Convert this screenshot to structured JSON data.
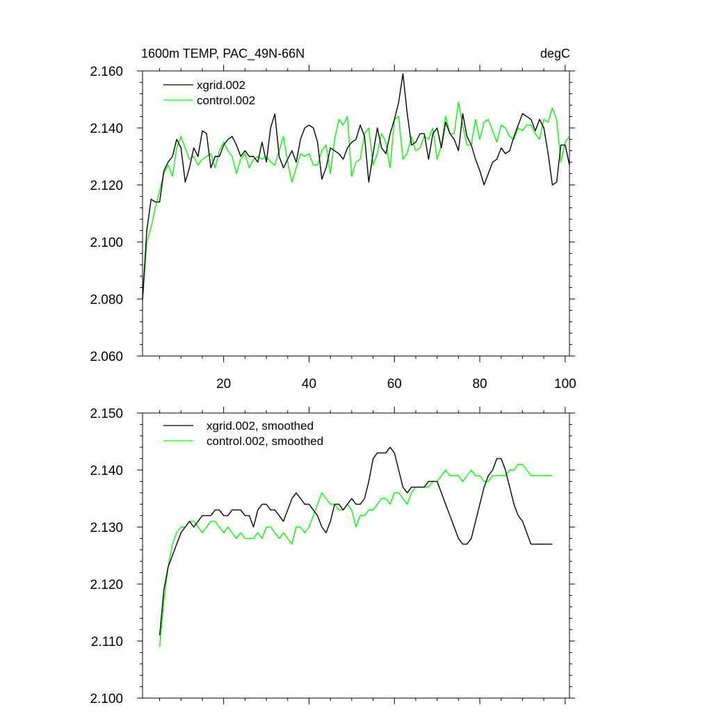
{
  "chart_data": [
    {
      "type": "line",
      "title": "1600m TEMP, PAC_49N-66N",
      "units": "degC",
      "xlabel": "",
      "ylabel": "",
      "xlim": [
        1,
        101
      ],
      "ylim": [
        2.06,
        2.16
      ],
      "xticks": [
        20,
        40,
        60,
        80,
        100
      ],
      "xtick_labels": [
        "20",
        "40",
        "60",
        "80",
        "100"
      ],
      "yticks": [
        2.06,
        2.08,
        2.1,
        2.12,
        2.14,
        2.16
      ],
      "ytick_labels": [
        "2.060",
        "2.080",
        "2.100",
        "2.120",
        "2.140",
        "2.160"
      ],
      "legend_position": "top-left",
      "grid": false,
      "series": [
        {
          "name": "xgrid.002",
          "color": "#000000",
          "x": [
            1,
            2,
            3,
            4,
            5,
            6,
            7,
            8,
            9,
            10,
            11,
            12,
            13,
            14,
            15,
            16,
            17,
            18,
            19,
            20,
            21,
            22,
            23,
            24,
            25,
            26,
            27,
            28,
            29,
            30,
            31,
            32,
            33,
            34,
            35,
            36,
            37,
            38,
            39,
            40,
            41,
            42,
            43,
            44,
            45,
            46,
            47,
            48,
            49,
            50,
            51,
            52,
            53,
            54,
            55,
            56,
            57,
            58,
            59,
            60,
            61,
            62,
            63,
            64,
            65,
            66,
            67,
            68,
            69,
            70,
            71,
            72,
            73,
            74,
            75,
            76,
            77,
            78,
            79,
            80,
            81,
            82,
            83,
            84,
            85,
            86,
            87,
            88,
            89,
            90,
            91,
            92,
            93,
            94,
            95,
            96,
            97,
            98,
            99,
            100,
            101
          ],
          "y": [
            2.08,
            2.104,
            2.115,
            2.114,
            2.114,
            2.125,
            2.128,
            2.13,
            2.136,
            2.133,
            2.121,
            2.126,
            2.133,
            2.13,
            2.139,
            2.138,
            2.126,
            2.13,
            2.13,
            2.134,
            2.136,
            2.137,
            2.134,
            2.13,
            2.132,
            2.13,
            2.13,
            2.128,
            2.135,
            2.128,
            2.14,
            2.145,
            2.13,
            2.126,
            2.129,
            2.132,
            2.128,
            2.136,
            2.14,
            2.141,
            2.14,
            2.135,
            2.122,
            2.126,
            2.133,
            2.132,
            2.131,
            2.129,
            2.133,
            2.135,
            2.136,
            2.141,
            2.137,
            2.121,
            2.131,
            2.14,
            2.133,
            2.131,
            2.138,
            2.143,
            2.149,
            2.159,
            2.145,
            2.134,
            2.135,
            2.138,
            2.138,
            2.129,
            2.138,
            2.14,
            2.133,
            2.142,
            2.138,
            2.136,
            2.132,
            2.145,
            2.137,
            2.134,
            2.129,
            2.125,
            2.12,
            2.124,
            2.128,
            2.129,
            2.133,
            2.131,
            2.132,
            2.137,
            2.141,
            2.145,
            2.144,
            2.143,
            2.139,
            2.143,
            2.14,
            2.131,
            2.12,
            2.121,
            2.134,
            2.134,
            2.127
          ]
        },
        {
          "name": "control.002",
          "color": "#00ff00",
          "x": [
            1,
            2,
            3,
            4,
            5,
            6,
            7,
            8,
            9,
            10,
            11,
            12,
            13,
            14,
            15,
            16,
            17,
            18,
            19,
            20,
            21,
            22,
            23,
            24,
            25,
            26,
            27,
            28,
            29,
            30,
            31,
            32,
            33,
            34,
            35,
            36,
            37,
            38,
            39,
            40,
            41,
            42,
            43,
            44,
            45,
            46,
            47,
            48,
            49,
            50,
            51,
            52,
            53,
            54,
            55,
            56,
            57,
            58,
            59,
            60,
            61,
            62,
            63,
            64,
            65,
            66,
            67,
            68,
            69,
            70,
            71,
            72,
            73,
            74,
            75,
            76,
            77,
            78,
            79,
            80,
            81,
            82,
            83,
            84,
            85,
            86,
            87,
            88,
            89,
            90,
            91,
            92,
            93,
            94,
            95,
            96,
            97,
            98,
            99,
            100,
            101
          ],
          "y": [
            2.079,
            2.1,
            2.105,
            2.112,
            2.118,
            2.124,
            2.127,
            2.123,
            2.133,
            2.137,
            2.133,
            2.129,
            2.13,
            2.127,
            2.129,
            2.13,
            2.131,
            2.126,
            2.132,
            2.135,
            2.132,
            2.13,
            2.124,
            2.129,
            2.131,
            2.126,
            2.129,
            2.13,
            2.129,
            2.13,
            2.128,
            2.127,
            2.132,
            2.137,
            2.128,
            2.121,
            2.126,
            2.131,
            2.13,
            2.131,
            2.127,
            2.127,
            2.132,
            2.134,
            2.124,
            2.136,
            2.143,
            2.141,
            2.144,
            2.123,
            2.128,
            2.129,
            2.138,
            2.14,
            2.127,
            2.131,
            2.138,
            2.135,
            2.126,
            2.143,
            2.144,
            2.129,
            2.131,
            2.137,
            2.132,
            2.133,
            2.137,
            2.136,
            2.14,
            2.129,
            2.134,
            2.144,
            2.138,
            2.138,
            2.149,
            2.141,
            2.134,
            2.134,
            2.143,
            2.136,
            2.142,
            2.143,
            2.139,
            2.135,
            2.141,
            2.14,
            2.137,
            2.136,
            2.14,
            2.139,
            2.141,
            2.141,
            2.138,
            2.136,
            2.143,
            2.142,
            2.147,
            2.143,
            2.128,
            2.135,
            2.137
          ]
        }
      ]
    },
    {
      "type": "line",
      "title": "",
      "xlabel": "",
      "ylabel": "",
      "xlim": [
        1,
        101
      ],
      "ylim": [
        2.1,
        2.15
      ],
      "xticks": [
        20,
        40,
        60,
        80,
        100
      ],
      "xtick_labels": [],
      "yticks": [
        2.1,
        2.11,
        2.12,
        2.13,
        2.14,
        2.15
      ],
      "ytick_labels": [
        "2.100",
        "2.110",
        "2.120",
        "2.130",
        "2.140",
        "2.150"
      ],
      "legend_position": "top-left",
      "grid": false,
      "series": [
        {
          "name": "xgrid.002, smoothed",
          "color": "#000000",
          "x": [
            5,
            6,
            7,
            8,
            9,
            10,
            11,
            12,
            13,
            14,
            15,
            16,
            17,
            18,
            19,
            20,
            21,
            22,
            23,
            24,
            25,
            26,
            27,
            28,
            29,
            30,
            31,
            32,
            33,
            34,
            35,
            36,
            37,
            38,
            39,
            40,
            41,
            42,
            43,
            44,
            45,
            46,
            47,
            48,
            49,
            50,
            51,
            52,
            53,
            54,
            55,
            56,
            57,
            58,
            59,
            60,
            61,
            62,
            63,
            64,
            65,
            66,
            67,
            68,
            69,
            70,
            71,
            72,
            73,
            74,
            75,
            76,
            77,
            78,
            79,
            80,
            81,
            82,
            83,
            84,
            85,
            86,
            87,
            88,
            89,
            90,
            91,
            92,
            93,
            94,
            95,
            96,
            97
          ],
          "y": [
            2.111,
            2.119,
            2.123,
            2.125,
            2.127,
            2.129,
            2.13,
            2.131,
            2.13,
            2.131,
            2.132,
            2.132,
            2.132,
            2.133,
            2.133,
            2.132,
            2.132,
            2.133,
            2.133,
            2.133,
            2.132,
            2.132,
            2.13,
            2.133,
            2.134,
            2.134,
            2.133,
            2.133,
            2.132,
            2.131,
            2.133,
            2.135,
            2.136,
            2.135,
            2.134,
            2.134,
            2.133,
            2.132,
            2.13,
            2.129,
            2.131,
            2.134,
            2.134,
            2.133,
            2.134,
            2.135,
            2.134,
            2.134,
            2.135,
            2.138,
            2.142,
            2.143,
            2.143,
            2.143,
            2.144,
            2.143,
            2.14,
            2.137,
            2.136,
            2.137,
            2.137,
            2.137,
            2.137,
            2.138,
            2.138,
            2.138,
            2.136,
            2.134,
            2.132,
            2.13,
            2.128,
            2.127,
            2.127,
            2.128,
            2.131,
            2.134,
            2.137,
            2.139,
            2.14,
            2.142,
            2.142,
            2.14,
            2.137,
            2.134,
            2.132,
            2.131,
            2.129,
            2.127,
            2.127,
            2.127,
            2.127,
            2.127,
            2.127
          ]
        },
        {
          "name": "control.002, smoothed",
          "color": "#00ff00",
          "x": [
            5,
            6,
            7,
            8,
            9,
            10,
            11,
            12,
            13,
            14,
            15,
            16,
            17,
            18,
            19,
            20,
            21,
            22,
            23,
            24,
            25,
            26,
            27,
            28,
            29,
            30,
            31,
            32,
            33,
            34,
            35,
            36,
            37,
            38,
            39,
            40,
            41,
            42,
            43,
            44,
            45,
            46,
            47,
            48,
            49,
            50,
            51,
            52,
            53,
            54,
            55,
            56,
            57,
            58,
            59,
            60,
            61,
            62,
            63,
            64,
            65,
            66,
            67,
            68,
            69,
            70,
            71,
            72,
            73,
            74,
            75,
            76,
            77,
            78,
            79,
            80,
            81,
            82,
            83,
            84,
            85,
            86,
            87,
            88,
            89,
            90,
            91,
            92,
            93,
            94,
            95,
            96,
            97
          ],
          "y": [
            2.109,
            2.117,
            2.123,
            2.127,
            2.129,
            2.13,
            2.13,
            2.131,
            2.131,
            2.13,
            2.129,
            2.13,
            2.131,
            2.131,
            2.13,
            2.129,
            2.13,
            2.129,
            2.128,
            2.129,
            2.128,
            2.128,
            2.128,
            2.129,
            2.128,
            2.13,
            2.13,
            2.129,
            2.128,
            2.129,
            2.128,
            2.127,
            2.13,
            2.13,
            2.129,
            2.13,
            2.132,
            2.134,
            2.136,
            2.135,
            2.134,
            2.134,
            2.133,
            2.133,
            2.134,
            2.133,
            2.13,
            2.132,
            2.132,
            2.133,
            2.133,
            2.134,
            2.135,
            2.135,
            2.134,
            2.136,
            2.136,
            2.135,
            2.134,
            2.136,
            2.137,
            2.137,
            2.137,
            2.137,
            2.138,
            2.138,
            2.139,
            2.14,
            2.139,
            2.139,
            2.139,
            2.138,
            2.139,
            2.14,
            2.139,
            2.139,
            2.138,
            2.138,
            2.139,
            2.139,
            2.139,
            2.139,
            2.14,
            2.14,
            2.141,
            2.141,
            2.14,
            2.139,
            2.139,
            2.139,
            2.139,
            2.139,
            2.139
          ]
        }
      ]
    }
  ]
}
